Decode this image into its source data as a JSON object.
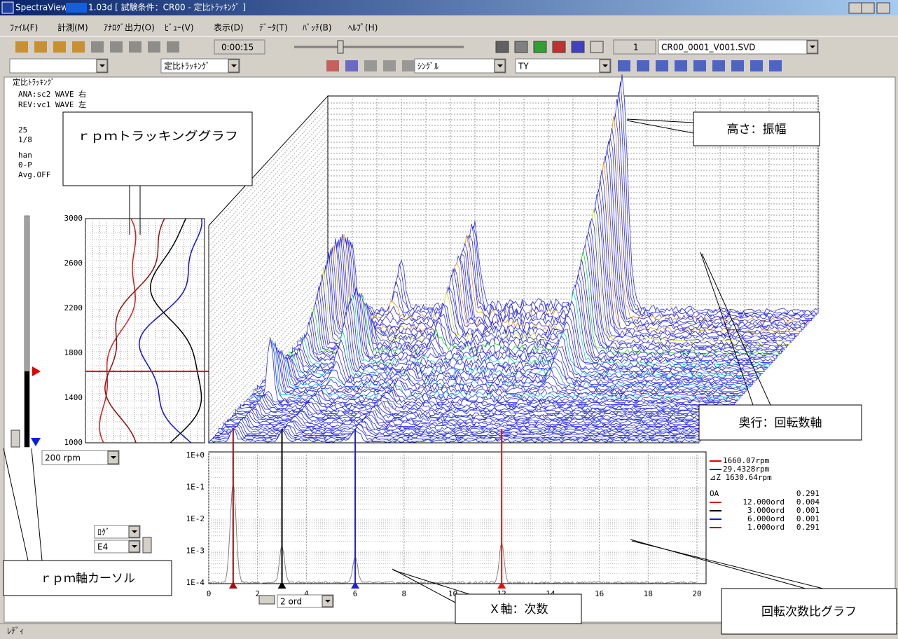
{
  "window": {
    "app": "SpectraView",
    "title": "1.03d [ 試験条件：CR00 - 定比ﾄﾗｯｷﾝｸﾞ ]"
  },
  "menu": [
    "ﾌｧｲﾙ(F)",
    "計測(M)",
    "ｱﾅﾛｸﾞ出力(O)",
    "ﾋﾞｭｰ(V)",
    "表示(D)",
    "ﾃﾞｰﾀ(T)",
    "ﾊﾞｯﾁ(B)",
    "ﾍﾙﾌﾟ(H)"
  ],
  "toolbar": {
    "time": "0:00:15",
    "index": "1",
    "file": "CR00_0001_V001.SVD",
    "mode": "定比ﾄﾗｯｷﾝｸﾞ",
    "average": "ｼﾝｸﾞﾙ",
    "display": "TY"
  },
  "info": [
    "定比ﾄﾗｯｷﾝｸﾞ",
    "ANA:sc2 WAVE 右",
    "REV:vc1 WAVE 左",
    "25",
    "1/8",
    "han",
    "0-P",
    "Avg.OFF"
  ],
  "rpm_graph": {
    "yticks": [
      3000,
      2600,
      2200,
      1800,
      1400,
      1000
    ],
    "step": "200 rpm"
  },
  "order_graph": {
    "yticks": [
      "1E+0",
      "1E-1",
      "1E-2",
      "1E-3",
      "1E-4"
    ],
    "xticks": [
      0,
      2,
      4,
      6,
      8,
      10,
      12,
      14,
      16,
      18,
      20
    ],
    "scale": "ﾛｸﾞ",
    "range": "E4",
    "resolution": "2 ord"
  },
  "legend": {
    "cursor1": "1660.07rpm",
    "cursor2": "29.4328rpm",
    "delta": "⊿Z 1630.64rpm",
    "rows": [
      [
        "OA",
        "0.291"
      ],
      [
        "12.000ord",
        "0.004"
      ],
      [
        "3.000ord",
        "0.001"
      ],
      [
        "6.000ord",
        "0.001"
      ],
      [
        "1.000ord",
        "0.291"
      ]
    ]
  },
  "callouts": [
    "ｒｐｍトラッキンググラフ",
    "高さ：振幅",
    "奥行：回転数軸",
    "ｒｐｍ軸カーソル",
    "Ｘ軸：次数",
    "回転次数比グラフ"
  ],
  "status": "ﾚﾃﾞｨ"
}
